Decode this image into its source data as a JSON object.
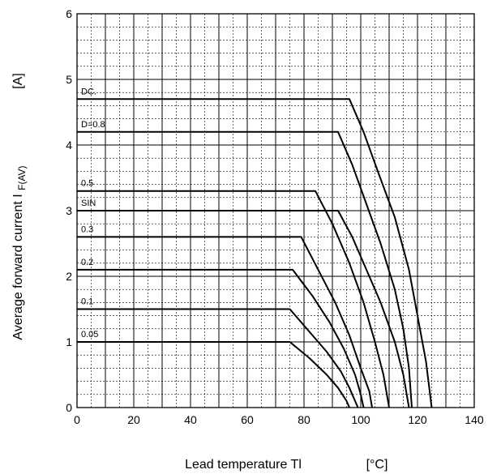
{
  "chart_data": {
    "type": "line",
    "title": "",
    "xlabel": "Lead temperature  Tl",
    "xunit": "[°C]",
    "ylabel": "Average forward current  I",
    "ylabel_subscript": "F(AV)",
    "yunit": "[A]",
    "xlim": [
      0,
      140
    ],
    "ylim": [
      0,
      6
    ],
    "xticks": [
      "0",
      "20",
      "40",
      "60",
      "80",
      "100",
      "120",
      "140"
    ],
    "yticks": [
      "0",
      "1",
      "2",
      "3",
      "4",
      "5",
      "6"
    ],
    "grid": true,
    "series": [
      {
        "name": "DC.",
        "x": [
          0,
          96,
          101,
          106,
          112,
          117,
          120,
          123,
          125
        ],
        "y": [
          4.7,
          4.7,
          4.2,
          3.6,
          2.9,
          2.1,
          1.4,
          0.7,
          0
        ]
      },
      {
        "name": "D=0.8",
        "x": [
          0,
          92,
          97,
          102,
          107,
          112,
          115,
          117,
          118
        ],
        "y": [
          4.2,
          4.2,
          3.7,
          3.1,
          2.5,
          1.8,
          1.2,
          0.6,
          0
        ]
      },
      {
        "name": "0.5",
        "x": [
          0,
          84,
          90,
          96,
          101,
          105,
          108,
          110
        ],
        "y": [
          3.3,
          3.3,
          2.8,
          2.2,
          1.6,
          1.0,
          0.5,
          0
        ]
      },
      {
        "name": "SIN",
        "x": [
          0,
          92,
          97,
          102,
          107,
          112,
          115,
          117
        ],
        "y": [
          3.0,
          3.0,
          2.6,
          2.1,
          1.6,
          1.0,
          0.5,
          0
        ]
      },
      {
        "name": "0.3",
        "x": [
          0,
          79,
          85,
          91,
          96,
          100,
          103,
          104
        ],
        "y": [
          2.6,
          2.6,
          2.1,
          1.6,
          1.1,
          0.6,
          0.25,
          0
        ]
      },
      {
        "name": "0.2",
        "x": [
          0,
          76,
          83,
          89,
          94,
          98,
          100,
          101
        ],
        "y": [
          2.1,
          2.1,
          1.7,
          1.3,
          0.9,
          0.5,
          0.2,
          0
        ]
      },
      {
        "name": "0.1",
        "x": [
          0,
          75,
          82,
          88,
          93,
          96,
          98,
          99
        ],
        "y": [
          1.5,
          1.5,
          1.15,
          0.85,
          0.55,
          0.3,
          0.1,
          0
        ]
      },
      {
        "name": "0.05",
        "x": [
          0,
          75,
          82,
          88,
          92,
          95,
          96
        ],
        "y": [
          1.0,
          1.0,
          0.75,
          0.5,
          0.3,
          0.1,
          0
        ]
      }
    ]
  }
}
